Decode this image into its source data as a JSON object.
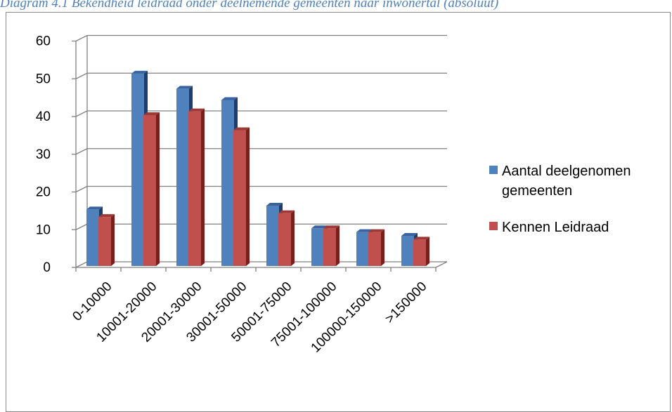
{
  "caption": "Diagram 4.1 Bekendheid leidraad onder deelnemende gemeenten naar inwonertal (absoluut)",
  "chart_data": {
    "type": "bar",
    "style": "3d-clustered-column",
    "categories": [
      "0-10000",
      "10001-20000",
      "20001-30000",
      "30001-50000",
      "50001-75000",
      "75001-100000",
      "100000-150000",
      ">150000"
    ],
    "series": [
      {
        "name": "Aantal deelgenomen gemeenten",
        "values": [
          15,
          51,
          47,
          44,
          16,
          10,
          9,
          8
        ],
        "color": "#4f81bd",
        "side_color": "#1f3d6b",
        "top_color": "#3a64a0"
      },
      {
        "name": "Kennen Leidraad",
        "values": [
          13,
          40,
          41,
          36,
          14,
          10,
          9,
          7
        ],
        "color": "#c0504d",
        "side_color": "#7a1e1c",
        "top_color": "#9c3a37"
      }
    ],
    "ylim": [
      0,
      60
    ],
    "yticks": [
      0,
      10,
      20,
      30,
      40,
      50,
      60
    ],
    "grid": true,
    "legend": "right",
    "title": "",
    "xlabel": "",
    "ylabel": ""
  }
}
